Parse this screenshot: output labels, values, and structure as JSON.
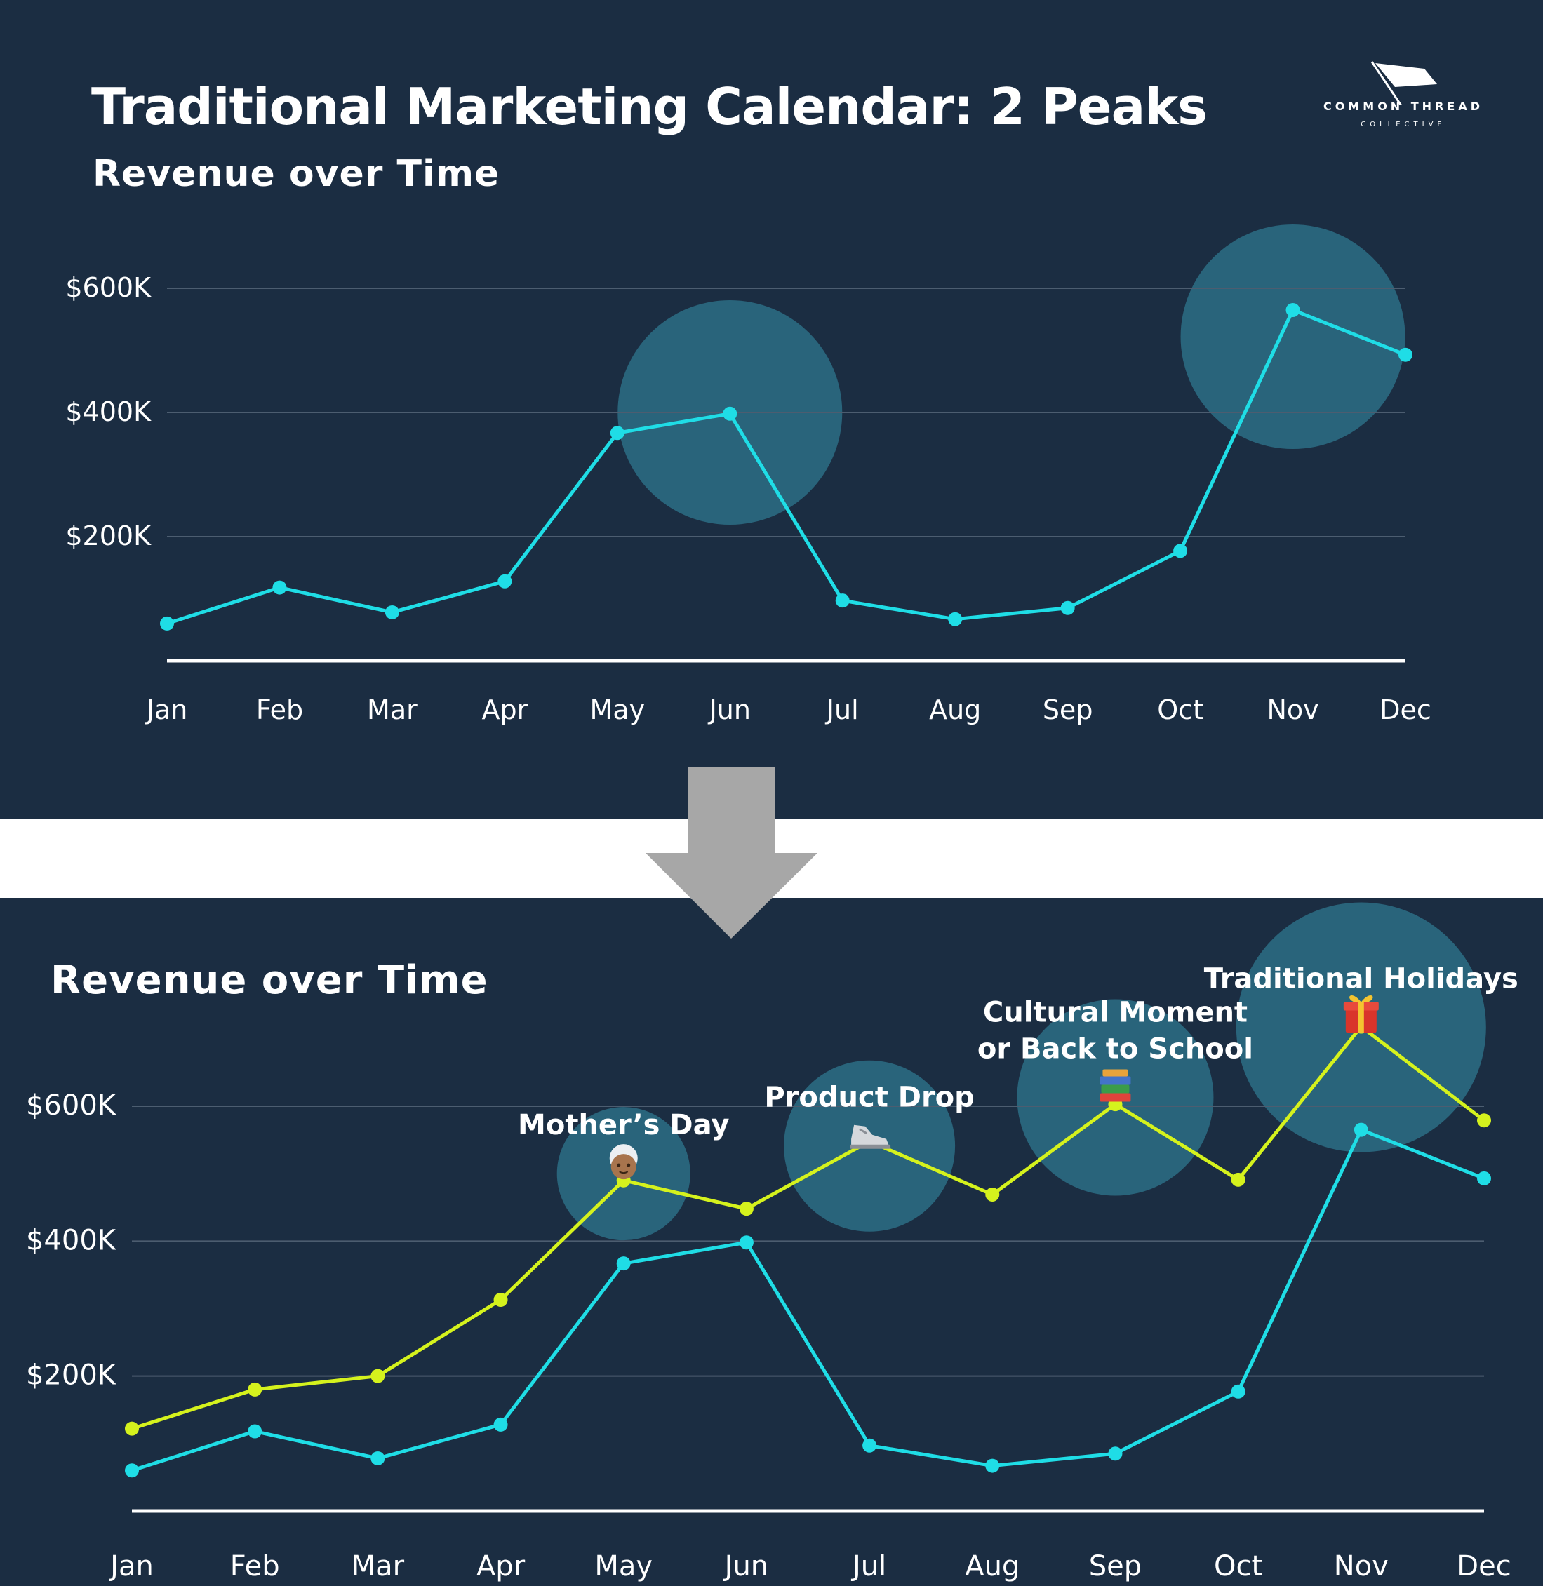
{
  "title": "Traditional Marketing Calendar: 2 Peaks",
  "logo": {
    "brand": "COMMON THREAD",
    "sub": "COLLECTIVE"
  },
  "colors": {
    "background": "#1b2d42",
    "traditional": "#1fdde6",
    "new": "#d5f21d",
    "highlight": "#2c6e85",
    "arrow": "#a7a7a7"
  },
  "chart_data": [
    {
      "type": "line",
      "subtitle": "Revenue over Time",
      "categories": [
        "Jan",
        "Feb",
        "Mar",
        "Apr",
        "May",
        "Jun",
        "Jul",
        "Aug",
        "Sep",
        "Oct",
        "Nov",
        "Dec"
      ],
      "y_ticks": [
        {
          "value": 200000,
          "label": "$200K"
        },
        {
          "value": 400000,
          "label": "$400K"
        },
        {
          "value": 600000,
          "label": "$600K"
        }
      ],
      "ylim": [
        0,
        600000
      ],
      "grid": true,
      "series": [
        {
          "color": "#1fdde6",
          "values": [
            60000,
            118000,
            78000,
            128000,
            367000,
            398000,
            97000,
            67000,
            85000,
            177000,
            565000,
            493000
          ]
        }
      ],
      "highlights": [
        {
          "month": "Jun",
          "value": 400000
        },
        {
          "month": "Nov",
          "value": 522000
        }
      ]
    },
    {
      "type": "line",
      "subtitle": "Revenue over Time",
      "categories": [
        "Jan",
        "Feb",
        "Mar",
        "Apr",
        "May",
        "Jun",
        "Jul",
        "Aug",
        "Sep",
        "Oct",
        "Nov",
        "Dec"
      ],
      "y_ticks": [
        {
          "value": 200000,
          "label": "$200K"
        },
        {
          "value": 400000,
          "label": "$400K"
        },
        {
          "value": 600000,
          "label": "$600K"
        }
      ],
      "ylim": [
        0,
        600000
      ],
      "grid": true,
      "series": [
        {
          "color": "#d5f21d",
          "values": [
            122000,
            180000,
            200000,
            313000,
            490000,
            448000,
            548000,
            469000,
            603000,
            491000,
            718000,
            579000
          ]
        },
        {
          "color": "#1fdde6",
          "values": [
            60000,
            118000,
            78000,
            128000,
            367000,
            398000,
            97000,
            67000,
            85000,
            177000,
            565000,
            493000
          ]
        }
      ],
      "annotations": [
        {
          "month": "May",
          "value": 500000,
          "lines": [
            "Mother’s Day"
          ],
          "icon": "grandmother-icon"
        },
        {
          "month": "Jul",
          "value": 541000,
          "lines": [
            "Product Drop"
          ],
          "icon": "sneaker-icon"
        },
        {
          "month": "Sep",
          "value": 613000,
          "lines": [
            "Cultural Moment",
            "or Back to School"
          ],
          "icon": "books-icon"
        },
        {
          "month": "Nov",
          "value": 717000,
          "lines": [
            "Traditional Holidays"
          ],
          "icon": "gift-icon"
        }
      ]
    }
  ]
}
